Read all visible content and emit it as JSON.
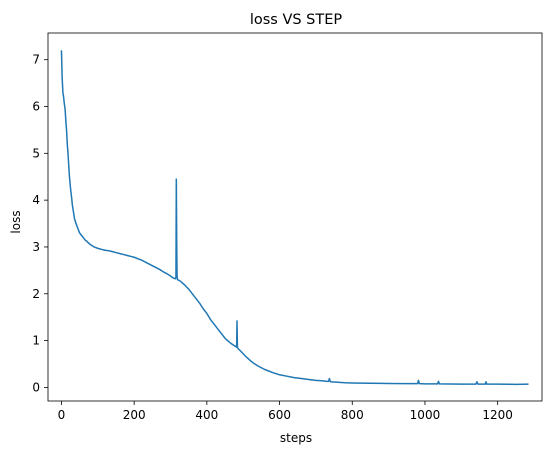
{
  "chart_data": {
    "type": "line",
    "title": "loss VS STEP",
    "xlabel": "steps",
    "ylabel": "loss",
    "xlim": [
      -37,
      1322
    ],
    "ylim": [
      -0.29,
      7.57
    ],
    "xticks": [
      0,
      200,
      400,
      600,
      800,
      1000,
      1200
    ],
    "yticks": [
      0,
      1,
      2,
      3,
      4,
      5,
      6,
      7
    ],
    "grid": false,
    "color": "#1f77b4",
    "series": [
      {
        "x": [
          0,
          2,
          4,
          6,
          8,
          10,
          12,
          14,
          16,
          18,
          20,
          22,
          25,
          28,
          30,
          33,
          36,
          40,
          45,
          50,
          55,
          60,
          65,
          70,
          75,
          80,
          90,
          100,
          110,
          120,
          130,
          140,
          150,
          160,
          170,
          180,
          190,
          200,
          210,
          220,
          230,
          240,
          250,
          260,
          270,
          280,
          290,
          300,
          305,
          310,
          313,
          315,
          316,
          317,
          318,
          319,
          320,
          325,
          330,
          340,
          350,
          360,
          370,
          380,
          390,
          400,
          410,
          420,
          430,
          440,
          450,
          460,
          470,
          480,
          482,
          483,
          484,
          485,
          486,
          487,
          490,
          500,
          510,
          520,
          530,
          540,
          550,
          560,
          580,
          600,
          620,
          640,
          660,
          680,
          700,
          720,
          730,
          735,
          737,
          740,
          760,
          780,
          800,
          850,
          900,
          950,
          975,
          980,
          982,
          985,
          1000,
          1030,
          1035,
          1037,
          1040,
          1100,
          1140,
          1143,
          1146,
          1160,
          1166,
          1168,
          1170,
          1200,
          1250,
          1285
        ],
        "y": [
          7.2,
          6.6,
          6.3,
          6.2,
          6.05,
          5.95,
          5.7,
          5.5,
          5.2,
          5.0,
          4.75,
          4.5,
          4.25,
          4.05,
          3.9,
          3.75,
          3.6,
          3.5,
          3.4,
          3.3,
          3.25,
          3.2,
          3.15,
          3.12,
          3.08,
          3.05,
          3.0,
          2.97,
          2.95,
          2.93,
          2.92,
          2.9,
          2.88,
          2.86,
          2.84,
          2.82,
          2.8,
          2.78,
          2.75,
          2.72,
          2.68,
          2.64,
          2.6,
          2.56,
          2.52,
          2.47,
          2.43,
          2.38,
          2.35,
          2.33,
          2.32,
          2.35,
          4.45,
          3.2,
          2.4,
          2.3,
          2.3,
          2.28,
          2.25,
          2.18,
          2.1,
          2.0,
          1.9,
          1.8,
          1.68,
          1.58,
          1.45,
          1.35,
          1.25,
          1.15,
          1.05,
          0.98,
          0.92,
          0.87,
          0.86,
          1.42,
          0.88,
          0.84,
          0.83,
          0.82,
          0.8,
          0.72,
          0.64,
          0.57,
          0.51,
          0.46,
          0.42,
          0.38,
          0.32,
          0.27,
          0.24,
          0.21,
          0.19,
          0.17,
          0.15,
          0.14,
          0.13,
          0.13,
          0.19,
          0.12,
          0.11,
          0.1,
          0.095,
          0.09,
          0.085,
          0.08,
          0.08,
          0.08,
          0.15,
          0.08,
          0.075,
          0.075,
          0.075,
          0.13,
          0.075,
          0.07,
          0.07,
          0.12,
          0.07,
          0.07,
          0.07,
          0.12,
          0.07,
          0.07,
          0.065,
          0.07
        ]
      }
    ]
  }
}
